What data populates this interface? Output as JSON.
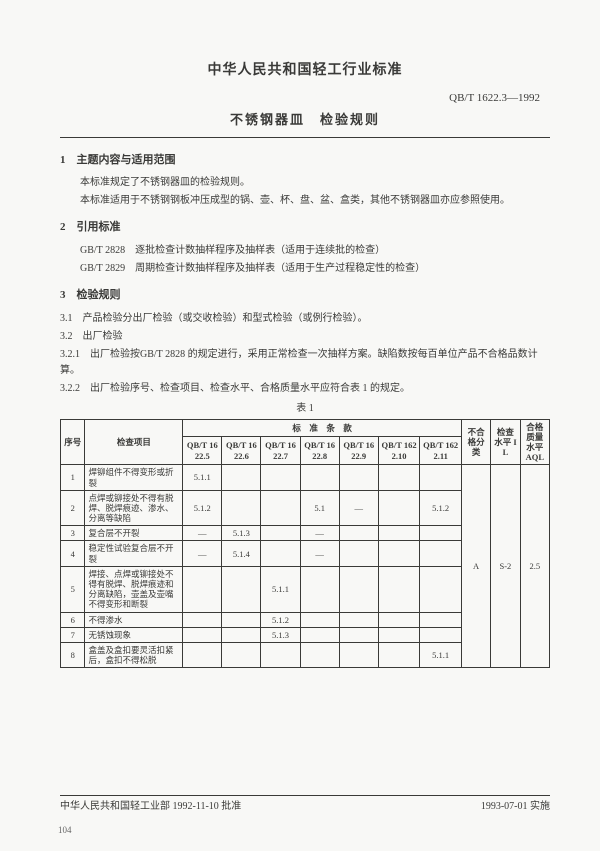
{
  "header": {
    "org_title": "中华人民共和国轻工行业标准",
    "doc_code": "QB/T 1622.3—1992",
    "doc_title": "不锈钢器皿　检验规则"
  },
  "sec1": {
    "head": "1　主题内容与适用范围",
    "p1": "本标准规定了不锈钢器皿的检验规则。",
    "p2": "本标准适用于不锈钢钢板冲压成型的锅、壶、杯、盘、盆、盒类，其他不锈钢器皿亦应参照使用。"
  },
  "sec2": {
    "head": "2　引用标准",
    "r1": "GB/T 2828　逐批检查计数抽样程序及抽样表（适用于连续批的检查）",
    "r2": "GB/T 2829　周期检查计数抽样程序及抽样表（适用于生产过程稳定性的检查）"
  },
  "sec3": {
    "head": "3　检验规则",
    "c31": "3.1　产品检验分出厂检验（或交收检验）和型式检验（或例行检验）。",
    "c32": "3.2　出厂检验",
    "c321": "3.2.1　出厂检验按GB/T 2828 的规定进行，采用正常检查一次抽样方案。缺陷数按每百单位产品不合格品数计算。",
    "c322": "3.2.2　出厂检验序号、检查项目、检查水平、合格质量水平应符合表 1 的规定。"
  },
  "table": {
    "caption": "表 1",
    "h_seq": "序号",
    "h_item": "检查项目",
    "h_std": "标　准　条　款",
    "h_cls": "不合格分类",
    "h_il": "检查水平 IL",
    "h_aql": "合格质量水平 AQL",
    "std_cols": [
      "QB/T 1622.5",
      "QB/T 1622.6",
      "QB/T 1622.7",
      "QB/T 1622.8",
      "QB/T 1622.9",
      "QB/T 1622.10",
      "QB/T 1622.11"
    ],
    "rows": [
      {
        "n": "1",
        "item": "焊铆组件不得变形或折裂",
        "c": [
          "5.1.1",
          "",
          "",
          "",
          "",
          "",
          ""
        ]
      },
      {
        "n": "2",
        "item": "点焊或铆接处不得有脱焊、脱焊痕迹、渗水、分离等缺陷",
        "c": [
          "5.1.2",
          "",
          "",
          "5.1",
          "—",
          "",
          "5.1.2"
        ]
      },
      {
        "n": "3",
        "item": "复合层不开裂",
        "c": [
          "—",
          "5.1.3",
          "",
          "—",
          "",
          "",
          ""
        ]
      },
      {
        "n": "4",
        "item": "稳定性试验复合层不开裂",
        "c": [
          "—",
          "5.1.4",
          "",
          "—",
          "",
          "",
          ""
        ]
      },
      {
        "n": "5",
        "item": "焊接、点焊或铆接处不得有脱焊、脱焊痕迹和分离缺陷，壶盖及壶嘴不得变形和断裂",
        "c": [
          "",
          "",
          "5.1.1",
          "",
          "",
          "",
          ""
        ]
      },
      {
        "n": "6",
        "item": "不得渗水",
        "c": [
          "",
          "",
          "5.1.2",
          "",
          "",
          "",
          ""
        ]
      },
      {
        "n": "7",
        "item": "无锈蚀现象",
        "c": [
          "",
          "",
          "5.1.3",
          "",
          "",
          "",
          ""
        ]
      },
      {
        "n": "8",
        "item": "盒盖及盒扣要灵活扣紧后，盒扣不得松脱",
        "c": [
          "",
          "",
          "",
          "",
          "",
          "",
          "5.1.1"
        ]
      }
    ],
    "cls_val": "A",
    "il_val": "S-2",
    "aql_val": "2.5"
  },
  "footer": {
    "left": "中华人民共和国轻工业部 1992-11-10 批准",
    "right": "1993-07-01 实施",
    "page": "104"
  }
}
